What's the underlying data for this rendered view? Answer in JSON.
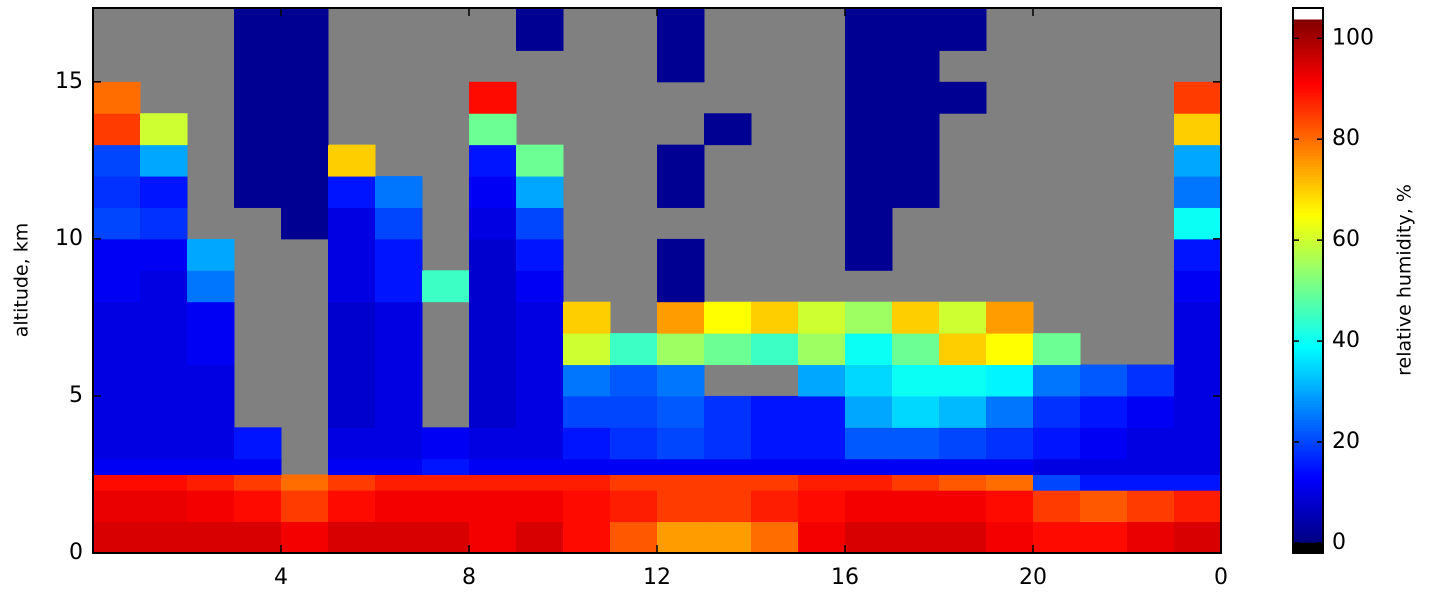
{
  "chart_data": {
    "type": "heatmap",
    "xlabel": null,
    "ylabel": "altitude, km",
    "colorbar_label": "relative humidity, %",
    "cmap": "jet",
    "missing_color": "#808080",
    "under_color": "#000000",
    "over_color": "#ffffff",
    "clim": [
      0,
      104
    ],
    "colorbar_lim": [
      -2,
      106
    ],
    "colorbar_ticks": [
      0,
      20,
      40,
      60,
      80,
      100
    ],
    "xlim": [
      0,
      24
    ],
    "ylim": [
      0,
      17.35
    ],
    "xticks": [
      4,
      8,
      12,
      16,
      20,
      {
        "value": 24,
        "label": "0"
      }
    ],
    "yticks": [
      0,
      5,
      10,
      15
    ],
    "x_bins": [
      0,
      1,
      2,
      3,
      4,
      5,
      6,
      7,
      8,
      9,
      10,
      11,
      12,
      13,
      14,
      15,
      16,
      17,
      18,
      19,
      20,
      21,
      22,
      23,
      24
    ],
    "y_bins": [
      0,
      1,
      2,
      2.5,
      3,
      4,
      5,
      6,
      7,
      8,
      9,
      10,
      11,
      12,
      13,
      14,
      15,
      16,
      17.35
    ],
    "z": [
      [
        95,
        95,
        95,
        95,
        92,
        95,
        95,
        95,
        92,
        95,
        90,
        82,
        75,
        75,
        80,
        92,
        95,
        95,
        95,
        92,
        90,
        90,
        93,
        95
      ],
      [
        93,
        93,
        92,
        90,
        85,
        90,
        92,
        92,
        92,
        92,
        90,
        88,
        85,
        85,
        88,
        90,
        92,
        92,
        92,
        90,
        85,
        82,
        85,
        88
      ],
      [
        90,
        90,
        88,
        85,
        80,
        85,
        88,
        88,
        88,
        88,
        88,
        85,
        85,
        85,
        85,
        88,
        88,
        85,
        82,
        80,
        20,
        15,
        15,
        15
      ],
      [
        12,
        12,
        12,
        12,
        null,
        12,
        12,
        15,
        12,
        12,
        12,
        12,
        12,
        12,
        12,
        12,
        12,
        12,
        12,
        12,
        10,
        10,
        10,
        10
      ],
      [
        10,
        10,
        10,
        15,
        null,
        10,
        10,
        12,
        10,
        10,
        15,
        18,
        20,
        18,
        15,
        15,
        22,
        22,
        20,
        18,
        15,
        12,
        10,
        10
      ],
      [
        10,
        10,
        10,
        null,
        null,
        8,
        10,
        null,
        8,
        10,
        20,
        20,
        22,
        18,
        15,
        15,
        30,
        35,
        32,
        25,
        18,
        15,
        12,
        10
      ],
      [
        10,
        10,
        10,
        null,
        null,
        8,
        10,
        null,
        8,
        10,
        25,
        22,
        25,
        null,
        null,
        30,
        35,
        40,
        40,
        38,
        25,
        22,
        18,
        10
      ],
      [
        10,
        10,
        12,
        null,
        null,
        8,
        10,
        null,
        8,
        10,
        60,
        45,
        55,
        50,
        45,
        55,
        40,
        50,
        70,
        65,
        50,
        null,
        null,
        10
      ],
      [
        10,
        10,
        12,
        null,
        null,
        8,
        10,
        null,
        8,
        10,
        70,
        null,
        75,
        65,
        70,
        60,
        55,
        70,
        60,
        75,
        null,
        null,
        null,
        10
      ],
      [
        12,
        10,
        25,
        null,
        null,
        10,
        15,
        45,
        8,
        12,
        null,
        null,
        2,
        null,
        null,
        null,
        null,
        null,
        null,
        null,
        null,
        null,
        null,
        12
      ],
      [
        12,
        12,
        30,
        null,
        null,
        10,
        15,
        null,
        8,
        15,
        null,
        null,
        2,
        null,
        null,
        null,
        2,
        null,
        null,
        null,
        null,
        null,
        null,
        15
      ],
      [
        20,
        18,
        null,
        null,
        2,
        10,
        20,
        null,
        10,
        20,
        null,
        null,
        null,
        null,
        null,
        null,
        2,
        null,
        null,
        null,
        null,
        null,
        null,
        40
      ],
      [
        18,
        15,
        null,
        2,
        2,
        15,
        25,
        null,
        12,
        30,
        null,
        null,
        2,
        null,
        null,
        null,
        2,
        2,
        null,
        null,
        null,
        null,
        null,
        25
      ],
      [
        20,
        30,
        null,
        2,
        2,
        70,
        null,
        null,
        15,
        50,
        null,
        null,
        2,
        null,
        null,
        null,
        2,
        2,
        null,
        null,
        null,
        null,
        null,
        30
      ],
      [
        85,
        60,
        null,
        2,
        2,
        null,
        null,
        null,
        50,
        null,
        null,
        null,
        null,
        2,
        null,
        null,
        2,
        2,
        null,
        null,
        null,
        null,
        null,
        70
      ],
      [
        80,
        null,
        null,
        2,
        2,
        null,
        null,
        null,
        90,
        null,
        null,
        null,
        null,
        null,
        null,
        null,
        2,
        2,
        2,
        null,
        null,
        null,
        null,
        85
      ],
      [
        null,
        null,
        null,
        2,
        2,
        null,
        null,
        null,
        null,
        null,
        null,
        null,
        2,
        null,
        null,
        null,
        2,
        2,
        null,
        null,
        null,
        null,
        null,
        null
      ],
      [
        null,
        null,
        null,
        2,
        2,
        null,
        null,
        null,
        null,
        2,
        null,
        null,
        2,
        null,
        null,
        null,
        2,
        2,
        2,
        null,
        null,
        null,
        null,
        null
      ]
    ]
  }
}
